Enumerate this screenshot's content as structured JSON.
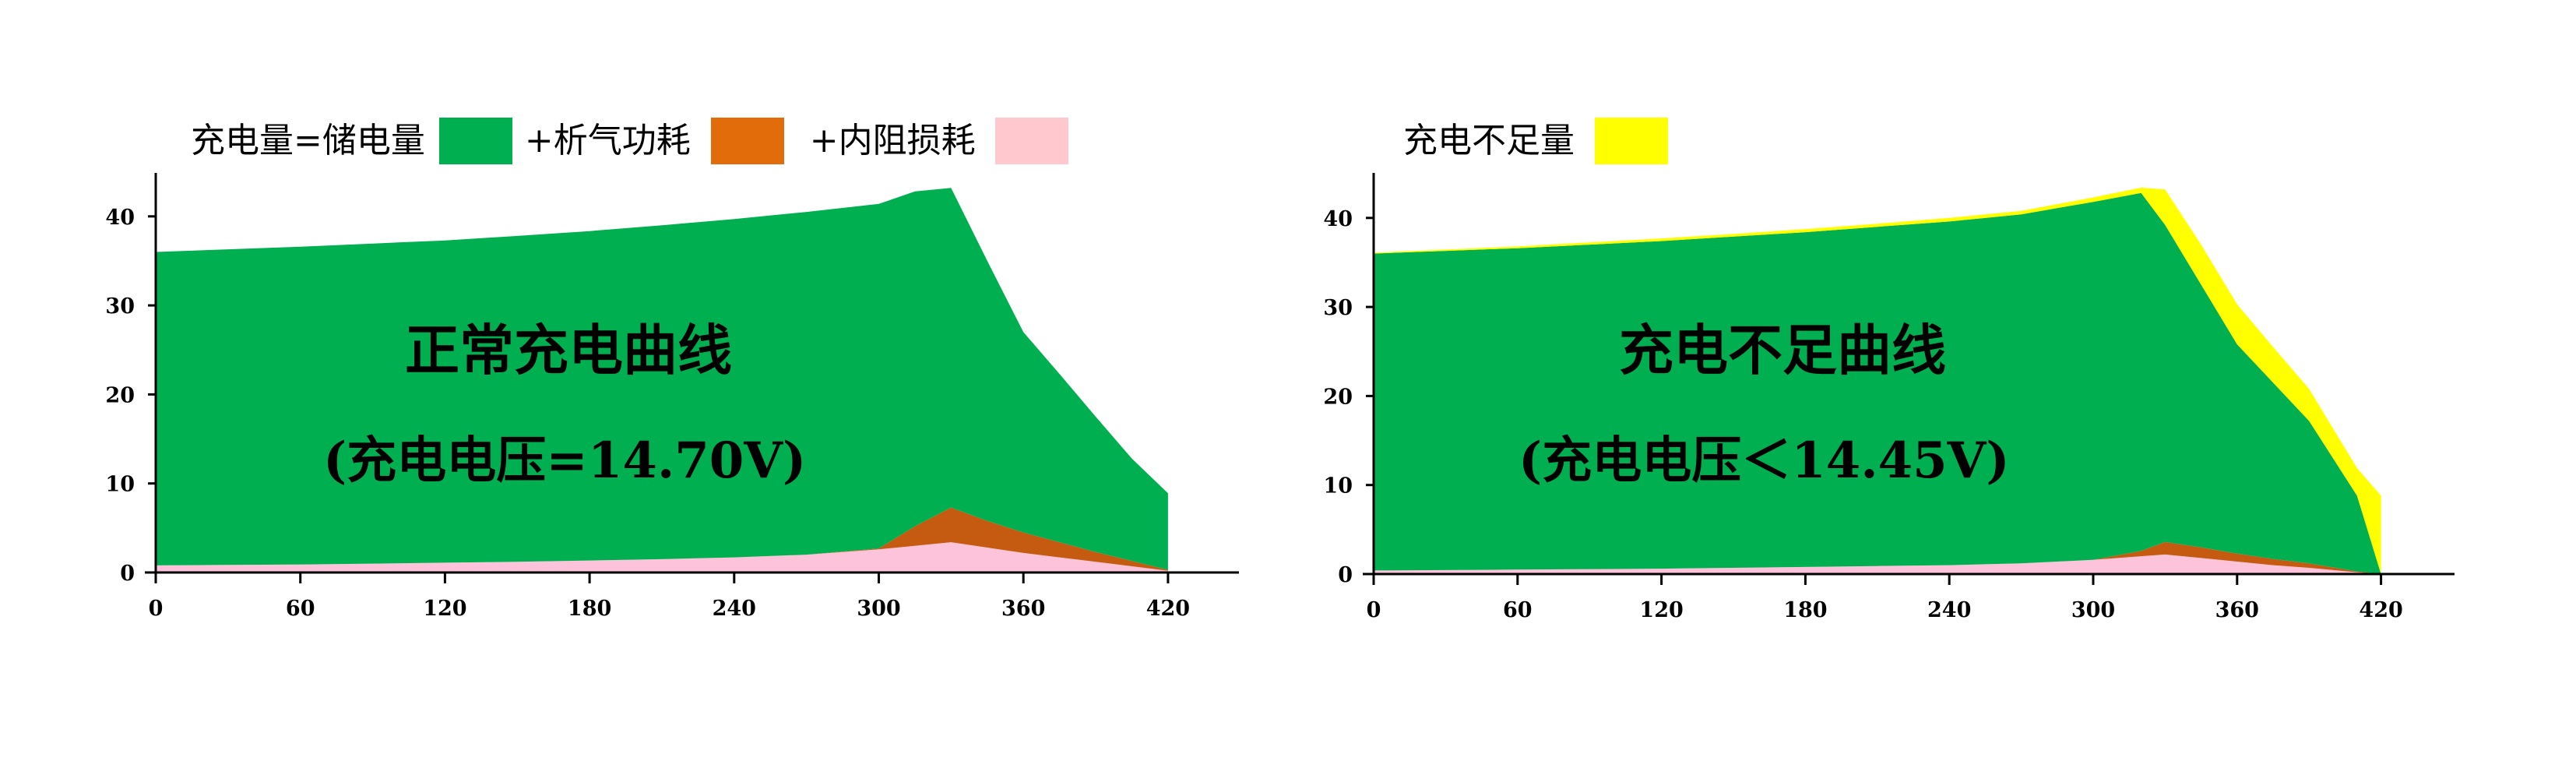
{
  "chart_data": [
    {
      "type": "area",
      "stacked": true,
      "title": "正常充电曲线",
      "subtitle": "(充电电压=14.70V)",
      "xlabel": "",
      "ylabel": "",
      "xlim": [
        0,
        420
      ],
      "ylim": [
        0,
        45
      ],
      "xticks": [
        0,
        60,
        120,
        180,
        240,
        300,
        360,
        420
      ],
      "yticks": [
        0,
        10,
        20,
        30,
        40
      ],
      "grid": false,
      "legend_position": "top",
      "legend": [
        {
          "label": "充电量=储电量",
          "color": "#00B050"
        },
        {
          "label": "+析气功耗",
          "color": "#E26B0A"
        },
        {
          "label": "+内阻损耗",
          "color": "#FFC7CE"
        }
      ],
      "x": [
        0,
        30,
        60,
        90,
        120,
        150,
        180,
        210,
        240,
        270,
        300,
        315,
        330,
        345,
        360,
        375,
        390,
        405,
        420
      ],
      "series": [
        {
          "name": "内阻损耗",
          "color": "#FCC3DA",
          "values": [
            0.8,
            0.85,
            0.9,
            1.0,
            1.1,
            1.2,
            1.35,
            1.5,
            1.7,
            2.0,
            2.6,
            3.0,
            3.4,
            2.8,
            2.2,
            1.7,
            1.2,
            0.7,
            0.2
          ]
        },
        {
          "name": "析气功耗",
          "color": "#C55A11",
          "values": [
            0,
            0,
            0,
            0,
            0,
            0,
            0,
            0,
            0,
            0,
            0.1,
            2.2,
            3.9,
            3.0,
            2.3,
            1.7,
            1.1,
            0.6,
            0.1
          ]
        },
        {
          "name": "储电量",
          "color": "#00B050",
          "values": [
            35.2,
            35.45,
            35.7,
            35.95,
            36.2,
            36.6,
            37.0,
            37.5,
            38.0,
            38.5,
            38.7,
            37.6,
            35.9,
            29.2,
            22.5,
            18.9,
            15.2,
            11.5,
            8.6
          ]
        }
      ],
      "total_values": [
        36.0,
        36.3,
        36.6,
        36.95,
        37.3,
        37.8,
        38.35,
        39.0,
        39.7,
        40.5,
        41.4,
        42.8,
        43.2,
        35.0,
        27.0,
        22.3,
        17.5,
        12.8,
        8.9
      ]
    },
    {
      "type": "area",
      "stacked": true,
      "title": "充电不足曲线",
      "subtitle": "(充电电压＜14.45V)",
      "xlabel": "",
      "ylabel": "",
      "xlim": [
        0,
        420
      ],
      "ylim": [
        0,
        45
      ],
      "xticks": [
        0,
        60,
        120,
        180,
        240,
        300,
        360,
        420
      ],
      "yticks": [
        0,
        10,
        20,
        30,
        40
      ],
      "grid": false,
      "legend_position": "top",
      "legend": [
        {
          "label": "充电不足量",
          "color": "#FFFF00"
        }
      ],
      "x": [
        0,
        30,
        60,
        90,
        120,
        150,
        180,
        210,
        240,
        270,
        300,
        320,
        330,
        345,
        360,
        375,
        390,
        410,
        420
      ],
      "series": [
        {
          "name": "内阻损耗",
          "color": "#FCC3DA",
          "values": [
            0.4,
            0.45,
            0.5,
            0.55,
            0.6,
            0.7,
            0.8,
            0.9,
            1.0,
            1.2,
            1.6,
            2.0,
            2.2,
            1.8,
            1.4,
            1.0,
            0.7,
            0.2,
            0
          ]
        },
        {
          "name": "析气功耗",
          "color": "#C55A11",
          "values": [
            0,
            0,
            0,
            0,
            0,
            0,
            0,
            0,
            0,
            0,
            0,
            0.6,
            1.4,
            1.2,
            0.9,
            0.7,
            0.5,
            0.1,
            0
          ]
        },
        {
          "name": "储电量",
          "color": "#00B050",
          "values": [
            35.6,
            35.85,
            36.1,
            36.45,
            36.8,
            37.2,
            37.6,
            38.1,
            38.6,
            39.2,
            40.2,
            40.2,
            35.6,
            29.5,
            23.5,
            19.8,
            16.0,
            8.5,
            0
          ]
        },
        {
          "name": "充电不足量",
          "color": "#FFFF00",
          "values": [
            0.1,
            0.15,
            0.2,
            0.25,
            0.3,
            0.3,
            0.35,
            0.35,
            0.4,
            0.4,
            0.5,
            0.6,
            4.0,
            4.5,
            4.5,
            4.0,
            3.6,
            3.1,
            8.8
          ]
        }
      ],
      "total_values": [
        36.1,
        36.45,
        36.8,
        37.25,
        37.7,
        38.2,
        38.75,
        39.35,
        40.0,
        40.8,
        42.3,
        43.4,
        43.2,
        37.0,
        30.3,
        25.5,
        20.8,
        11.9,
        8.8
      ]
    }
  ],
  "panels": [
    {
      "legend": [
        {
          "label": "充电量=储电量",
          "color": "#00B050"
        },
        {
          "label": "+析气功耗",
          "color": "#E26B0A"
        },
        {
          "label": "+内阻损耗",
          "color": "#FFC7CE"
        }
      ],
      "title": "正常充电曲线",
      "subtitle": "(充电电压=14.70V)"
    },
    {
      "legend": [
        {
          "label": "充电不足量",
          "color": "#FFFF00"
        }
      ],
      "title": "充电不足曲线",
      "subtitle": "(充电电压＜14.45V)"
    }
  ],
  "colors": {
    "green": "#00B050",
    "orange_legend": "#E26B0A",
    "orange_area": "#C55A11",
    "pink_legend": "#FFC7CE",
    "pink_area": "#FCC3DA",
    "yellow": "#FFFF00",
    "axis": "#000000"
  }
}
